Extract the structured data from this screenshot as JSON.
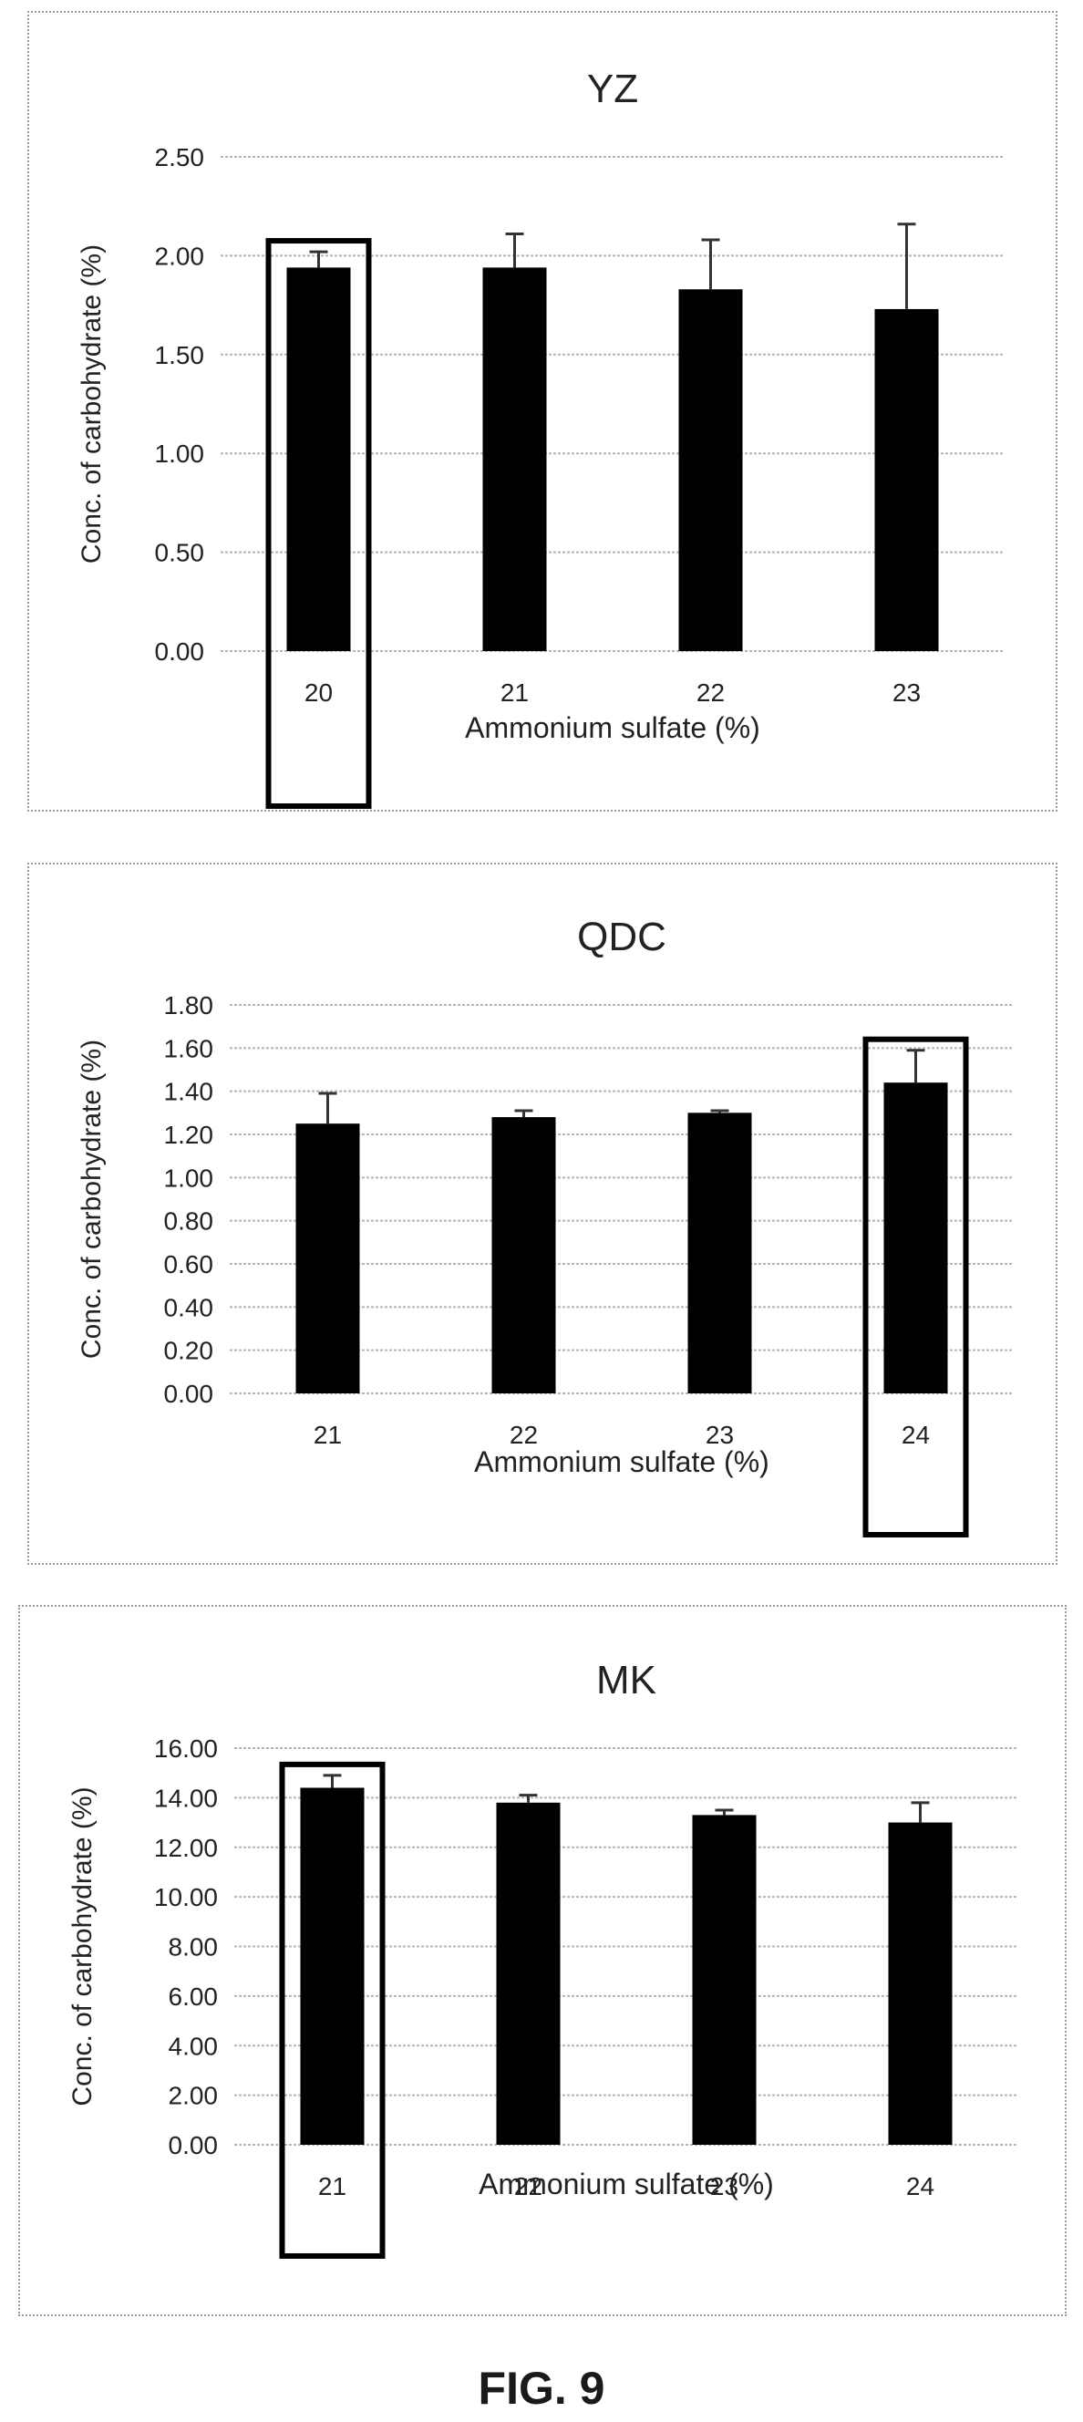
{
  "figure_caption": "FIG. 9",
  "chart_data": [
    {
      "type": "bar",
      "title": "YZ",
      "xlabel": "Ammonium sulfate (%)",
      "ylabel": "Conc. of carbohydrate (%)",
      "categories": [
        "20",
        "21",
        "22",
        "23"
      ],
      "values": [
        1.94,
        1.94,
        1.83,
        1.73
      ],
      "error": [
        0.08,
        0.17,
        0.25,
        0.43
      ],
      "ylim": [
        0,
        2.5
      ],
      "yticks": [
        "0.00",
        "0.50",
        "1.00",
        "1.50",
        "2.00",
        "2.50"
      ],
      "highlighted_category": "20",
      "grid": true,
      "bar_color": "#000000"
    },
    {
      "type": "bar",
      "title": "QDC",
      "xlabel": "Ammonium sulfate (%)",
      "ylabel": "Conc. of carbohydrate (%)",
      "categories": [
        "21",
        "22",
        "23",
        "24"
      ],
      "values": [
        1.25,
        1.28,
        1.3,
        1.44
      ],
      "error": [
        0.14,
        0.03,
        0.01,
        0.15
      ],
      "ylim": [
        0,
        1.8
      ],
      "yticks": [
        "0.00",
        "0.20",
        "0.40",
        "0.60",
        "0.80",
        "1.00",
        "1.20",
        "1.40",
        "1.60",
        "1.80"
      ],
      "highlighted_category": "24",
      "grid": true,
      "bar_color": "#000000"
    },
    {
      "type": "bar",
      "title": "MK",
      "xlabel": "Ammonium sulfate (%)",
      "ylabel": "Conc. of carbohydrate (%)",
      "categories": [
        "21",
        "22",
        "23",
        "24"
      ],
      "values": [
        14.4,
        13.8,
        13.3,
        13.0
      ],
      "error": [
        0.5,
        0.3,
        0.2,
        0.8
      ],
      "ylim": [
        0,
        16
      ],
      "yticks": [
        "0.00",
        "2.00",
        "4.00",
        "6.00",
        "8.00",
        "10.00",
        "12.00",
        "14.00",
        "16.00"
      ],
      "highlighted_category": "21",
      "grid": true,
      "bar_color": "#000000"
    }
  ]
}
